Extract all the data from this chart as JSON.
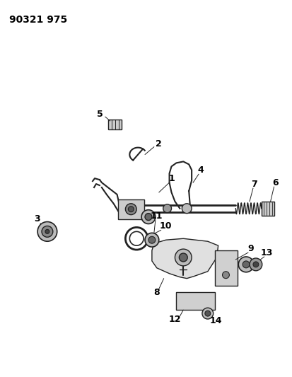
{
  "title": "90321 975",
  "background_color": "#ffffff",
  "line_color": "#222222",
  "text_color": "#000000",
  "title_fontsize": 10,
  "label_fontsize": 9,
  "fig_width": 4.14,
  "fig_height": 5.33,
  "dpi": 100
}
